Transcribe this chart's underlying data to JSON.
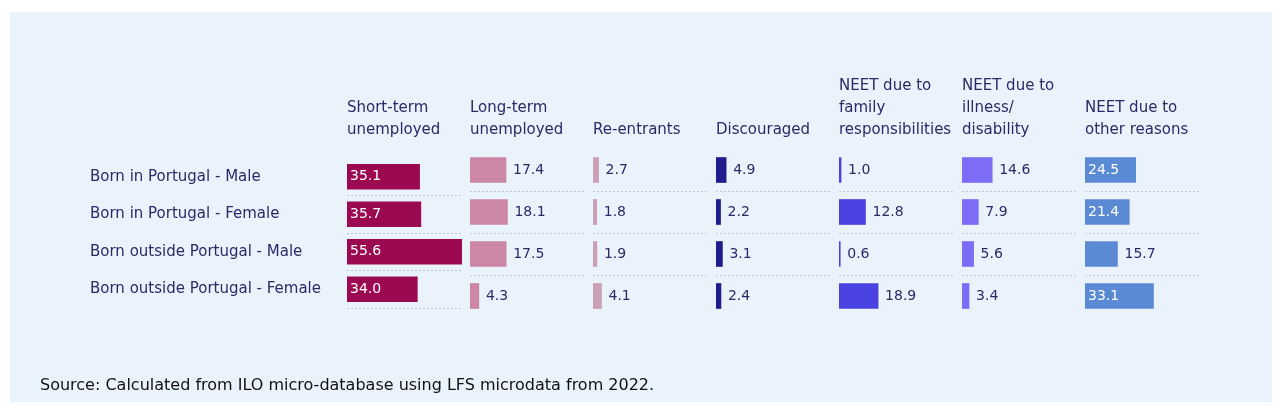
{
  "chart_data": [
    {
      "type": "bar",
      "orientation": "horizontal",
      "title": "Short-term unemployed",
      "categories": [
        "Born in Portugal - Male",
        "Born in Portugal - Female",
        "Born outside Portugal - Male",
        "Born outside Portugal - Female"
      ],
      "values": [
        35.1,
        35.7,
        55.6,
        34.0
      ],
      "value_labels": [
        "35.1",
        "35.7",
        "55.6",
        "34.0"
      ],
      "color": "#9b0a50",
      "grid": "y",
      "tick_labels": "y",
      "annotations": [
        "Source: Calculated from ILO micro-database using LFS microdata from 2022."
      ]
    },
    {
      "type": "bar",
      "orientation": "horizontal",
      "title": "Long-term unemployed",
      "categories": [
        null,
        null,
        null,
        null
      ],
      "values": [
        17.4,
        18.1,
        17.5,
        4.3
      ],
      "value_labels": [
        "17.4",
        "18.1",
        "17.5",
        "4.3"
      ],
      "color": "#cc86a8",
      "grid": "y",
      "tick_labels": false
    },
    {
      "type": "bar",
      "orientation": "horizontal",
      "title": "Re-entrants",
      "categories": [
        null,
        null,
        null,
        null
      ],
      "values": [
        2.7,
        1.8,
        1.9,
        4.1
      ],
      "value_labels": [
        "2.7",
        "1.8",
        "1.9",
        "4.1"
      ],
      "color": "#c9a0b8",
      "grid": "y",
      "tick_labels": false
    },
    {
      "type": "bar",
      "orientation": "horizontal",
      "title": "Discouraged",
      "categories": [
        null,
        null,
        null,
        null
      ],
      "values": [
        4.9,
        2.2,
        3.1,
        2.4
      ],
      "value_labels": [
        "4.9",
        "2.2",
        "3.1",
        "2.4"
      ],
      "color": "#1f1c8c",
      "grid": "y",
      "tick_labels": false
    },
    {
      "type": "bar",
      "orientation": "horizontal",
      "title": "NEET due to family responsibilities",
      "categories": [
        null,
        null,
        null,
        null
      ],
      "values": [
        1.0,
        12.8,
        0.6,
        18.9
      ],
      "value_labels": [
        "1.0",
        "12.8",
        "0.6",
        "18.9"
      ],
      "color": "#4a42e0",
      "grid": "y",
      "tick_labels": false
    },
    {
      "type": "bar",
      "orientation": "horizontal",
      "title": "NEET due to illness/ disability",
      "categories": [
        null,
        null,
        null,
        null
      ],
      "values": [
        14.6,
        7.9,
        5.6,
        3.4
      ],
      "value_labels": [
        "14.6",
        "7.9",
        "5.6",
        "3.4"
      ],
      "color": "#7c6cf6",
      "grid": "y",
      "tick_labels": false
    },
    {
      "type": "bar",
      "orientation": "horizontal",
      "title": "NEET due to other reasons",
      "categories": [
        null,
        null,
        null,
        null
      ],
      "values": [
        24.5,
        21.4,
        15.7,
        33.1
      ],
      "value_labels": [
        "24.5",
        "21.4",
        "15.7",
        "33.1"
      ],
      "color": "#5b8ad4",
      "grid": "y",
      "tick_labels": false
    }
  ]
}
